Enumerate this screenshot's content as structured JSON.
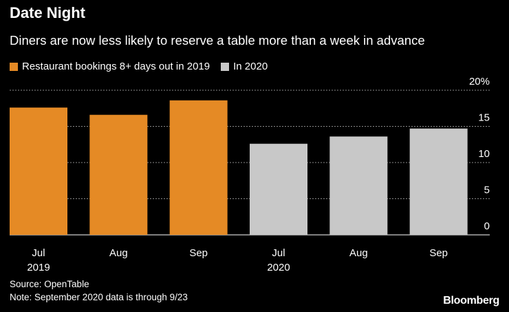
{
  "title": "Date Night",
  "subtitle": "Diners are now less likely to reserve a table more than a week in advance",
  "colors": {
    "series_2019": "#e58a25",
    "series_2020": "#c8c8c8",
    "grid": "#8a8a8a",
    "background": "#000000"
  },
  "chart_data": {
    "type": "bar",
    "categories": [
      {
        "month": "Jul",
        "year": "2019"
      },
      {
        "month": "Aug",
        "year": ""
      },
      {
        "month": "Sep",
        "year": ""
      },
      {
        "month": "Jul",
        "year": "2020"
      },
      {
        "month": "Aug",
        "year": ""
      },
      {
        "month": "Sep",
        "year": ""
      }
    ],
    "series": [
      {
        "name": "Restaurant bookings 8+ days out in 2019",
        "values": [
          17.6,
          16.6,
          18.6,
          null,
          null,
          null
        ]
      },
      {
        "name": "In 2020",
        "values": [
          null,
          null,
          null,
          12.6,
          13.6,
          14.7
        ]
      }
    ],
    "ylim": [
      0,
      20
    ],
    "yticks": [
      "0",
      "5",
      "10",
      "15",
      "20%"
    ],
    "grid": true
  },
  "footer": {
    "source": "Source: OpenTable",
    "note": "Note: September 2020 data is through 9/23",
    "logo": "Bloomberg"
  }
}
